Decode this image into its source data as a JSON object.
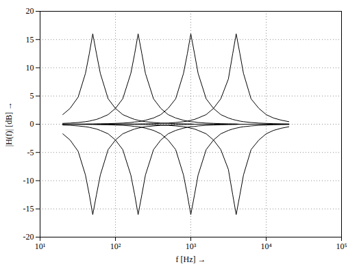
{
  "chart_data": {
    "type": "line",
    "xlabel": "f [Hz] →",
    "ylabel": "|H(f)| [dB] →",
    "log": "x",
    "grid": true,
    "xlim": [
      10,
      100000
    ],
    "xticks": [
      {
        "value": 10,
        "label": "10¹"
      },
      {
        "value": 100,
        "label": "10²"
      },
      {
        "value": 1000,
        "label": "10³"
      },
      {
        "value": 10000,
        "label": "10⁴"
      },
      {
        "value": 100000,
        "label": "10⁵"
      }
    ],
    "ylim": [
      -20,
      20
    ],
    "yticks": [
      -20,
      -15,
      -10,
      -5,
      0,
      5,
      10,
      15,
      20
    ],
    "x": [
      20,
      25,
      32,
      40,
      45,
      50,
      56,
      63,
      80,
      100,
      125,
      160,
      180,
      200,
      224,
      250,
      320,
      400,
      500,
      630,
      800,
      900,
      1000,
      1120,
      1250,
      1600,
      2000,
      2500,
      3150,
      3600,
      4000,
      4480,
      5000,
      6300,
      8000,
      10000,
      12500,
      16000,
      20000
    ],
    "series": [
      {
        "color": "#000000",
        "values": [
          1.7,
          2.8,
          4.8,
          9,
          12.5,
          16,
          12.5,
          9,
          4.5,
          2.8,
          1.7,
          1.1,
          0.85,
          0.7,
          0.55,
          0.45,
          0.3,
          0.2,
          0.15,
          0.1,
          0.07,
          0.06,
          0.05,
          0,
          0,
          0,
          0,
          0,
          0,
          0,
          0,
          0,
          0,
          0,
          0,
          0,
          0,
          0,
          0
        ]
      },
      {
        "color": "#000000",
        "values": [
          0.15,
          0.2,
          0.3,
          0.45,
          0.55,
          0.7,
          0.85,
          1.1,
          1.7,
          2.8,
          4.5,
          9,
          12.5,
          16,
          12.5,
          9,
          4.5,
          2.8,
          1.7,
          1.1,
          0.7,
          0.55,
          0.45,
          0.4,
          0.3,
          0.2,
          0.15,
          0.1,
          0.07,
          0.06,
          0.05,
          0,
          0,
          0,
          0,
          0,
          0,
          0,
          0
        ]
      },
      {
        "color": "#000000",
        "values": [
          0.02,
          0.02,
          0.03,
          0.04,
          0.05,
          0.05,
          0.07,
          0.08,
          0.1,
          0.15,
          0.2,
          0.3,
          0.4,
          0.45,
          0.55,
          0.7,
          1.1,
          1.7,
          2.8,
          4.5,
          9,
          12.5,
          16,
          12.5,
          9,
          4.5,
          2.8,
          1.7,
          1.1,
          0.85,
          0.7,
          0.55,
          0.45,
          0.3,
          0.2,
          0.15,
          0.1,
          0.07,
          0.05
        ]
      },
      {
        "color": "#000000",
        "values": [
          0,
          0,
          0,
          0,
          0,
          0,
          0,
          0,
          0.02,
          0.03,
          0.03,
          0.04,
          0.04,
          0.05,
          0.06,
          0.07,
          0.1,
          0.15,
          0.2,
          0.3,
          0.45,
          0.55,
          0.7,
          0.85,
          1.1,
          1.7,
          2.8,
          4.5,
          8,
          12.5,
          16,
          12.5,
          9,
          4.5,
          2.8,
          1.7,
          1.1,
          0.7,
          0.45
        ]
      },
      {
        "color": "#000000",
        "values": [
          -1.7,
          -2.8,
          -4.8,
          -9,
          -12.5,
          -16,
          -12.5,
          -9,
          -4.5,
          -2.8,
          -1.7,
          -1.1,
          -0.85,
          -0.7,
          -0.55,
          -0.45,
          -0.3,
          -0.2,
          -0.15,
          -0.1,
          -0.07,
          -0.06,
          -0.05,
          0,
          0,
          0,
          0,
          0,
          0,
          0,
          0,
          0,
          0,
          0,
          0,
          0,
          0,
          0,
          0
        ]
      },
      {
        "color": "#000000",
        "values": [
          -0.15,
          -0.2,
          -0.3,
          -0.45,
          -0.55,
          -0.7,
          -0.85,
          -1.1,
          -1.7,
          -2.8,
          -4.5,
          -9,
          -12.5,
          -16,
          -12.5,
          -9,
          -4.5,
          -2.8,
          -1.7,
          -1.1,
          -0.7,
          -0.55,
          -0.45,
          -0.4,
          -0.3,
          -0.2,
          -0.15,
          -0.1,
          -0.07,
          -0.06,
          -0.05,
          0,
          0,
          0,
          0,
          0,
          0,
          0,
          0
        ]
      },
      {
        "color": "#000000",
        "values": [
          -0.02,
          -0.02,
          -0.03,
          -0.04,
          -0.05,
          -0.05,
          -0.07,
          -0.08,
          -0.1,
          -0.15,
          -0.2,
          -0.3,
          -0.4,
          -0.45,
          -0.55,
          -0.7,
          -1.1,
          -1.7,
          -2.8,
          -4.5,
          -9,
          -12.5,
          -16,
          -12.5,
          -9,
          -4.5,
          -2.8,
          -1.7,
          -1.1,
          -0.85,
          -0.7,
          -0.55,
          -0.45,
          -0.3,
          -0.2,
          -0.15,
          -0.1,
          -0.07,
          -0.05
        ]
      },
      {
        "color": "#000000",
        "values": [
          0,
          0,
          0,
          0,
          0,
          0,
          0,
          0,
          -0.02,
          -0.03,
          -0.03,
          -0.04,
          -0.04,
          -0.05,
          -0.06,
          -0.07,
          -0.1,
          -0.15,
          -0.2,
          -0.3,
          -0.45,
          -0.55,
          -0.7,
          -0.85,
          -1.1,
          -1.7,
          -2.8,
          -4.5,
          -8,
          -12.5,
          -16,
          -12.5,
          -9,
          -4.5,
          -2.8,
          -1.7,
          -1.1,
          -0.7,
          -0.45
        ]
      }
    ]
  }
}
